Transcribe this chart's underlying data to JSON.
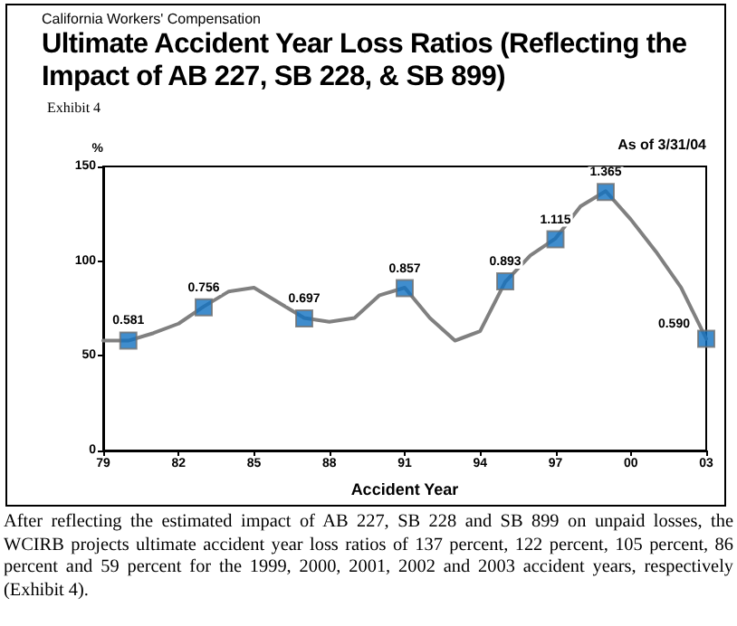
{
  "chart_data": {
    "type": "line",
    "subtitle": "California Workers' Compensation",
    "title": "Ultimate Accident Year Loss Ratios (Reflecting the Impact of AB 227, SB 228, & SB 899)",
    "xlabel": "Accident Year",
    "ylabel": "%",
    "annotations": [
      "Exhibit 4",
      "As of 3/31/04",
      "After reflecting the estimated impact of AB 227, SB 228 and SB 899 on unpaid losses, the WCIRB projects ultimate accident year loss ratios of 137 percent, 122 percent, 105 percent, 86 percent and 59 percent for the 1999, 2000, 2001, 2002 and 2003 accident years, respectively (Exhibit 4).",
      {
        "text": "0.581",
        "x": 1980,
        "y": 58.1
      },
      {
        "text": "0.756",
        "x": 1983,
        "y": 75.6
      },
      {
        "text": "0.697",
        "x": 1987,
        "y": 69.7
      },
      {
        "text": "0.857",
        "x": 1991,
        "y": 85.7
      },
      {
        "text": "0.893",
        "x": 1995,
        "y": 89.3
      },
      {
        "text": "1.115",
        "x": 1997,
        "y": 111.5
      },
      {
        "text": "1.365",
        "x": 1999,
        "y": 136.5
      },
      {
        "text": "0.590",
        "x": 2003,
        "y": 59
      }
    ],
    "xlim": [
      1979,
      2003
    ],
    "xticks": [
      {
        "value": 1979,
        "label": "79"
      },
      {
        "value": 1982,
        "label": "82"
      },
      {
        "value": 1985,
        "label": "85"
      },
      {
        "value": 1988,
        "label": "88"
      },
      {
        "value": 1991,
        "label": "91"
      },
      {
        "value": 1994,
        "label": "94"
      },
      {
        "value": 1997,
        "label": "97"
      },
      {
        "value": 2000,
        "label": "00"
      },
      {
        "value": 2003,
        "label": "03"
      }
    ],
    "ylim": [
      0,
      150
    ],
    "yticks": [
      0,
      50,
      100,
      150
    ],
    "grid": false,
    "line_style": "solid",
    "series": [
      {
        "marker": "none",
        "color": "#808080",
        "x": [
          1979,
          1980,
          1981,
          1982,
          1983,
          1984,
          1985,
          1986,
          1987,
          1988,
          1989,
          1990,
          1991,
          1992,
          1993,
          1994,
          1995,
          1996,
          1997,
          1998,
          1999,
          2000,
          2001,
          2002,
          2003
        ],
        "values": [
          58,
          58,
          62,
          67,
          76,
          84,
          86,
          78,
          70,
          68,
          70,
          82,
          86,
          70,
          58,
          63,
          89,
          103,
          112,
          129,
          137,
          122,
          105,
          86,
          59
        ]
      },
      {
        "type": "scatter",
        "marker": "square",
        "color": "#1070c0",
        "x": [
          1980,
          1983,
          1987,
          1991,
          1995,
          1997,
          1999,
          2003
        ],
        "values": [
          58.1,
          75.6,
          69.7,
          85.7,
          89.3,
          111.5,
          136.5,
          59
        ]
      }
    ]
  }
}
